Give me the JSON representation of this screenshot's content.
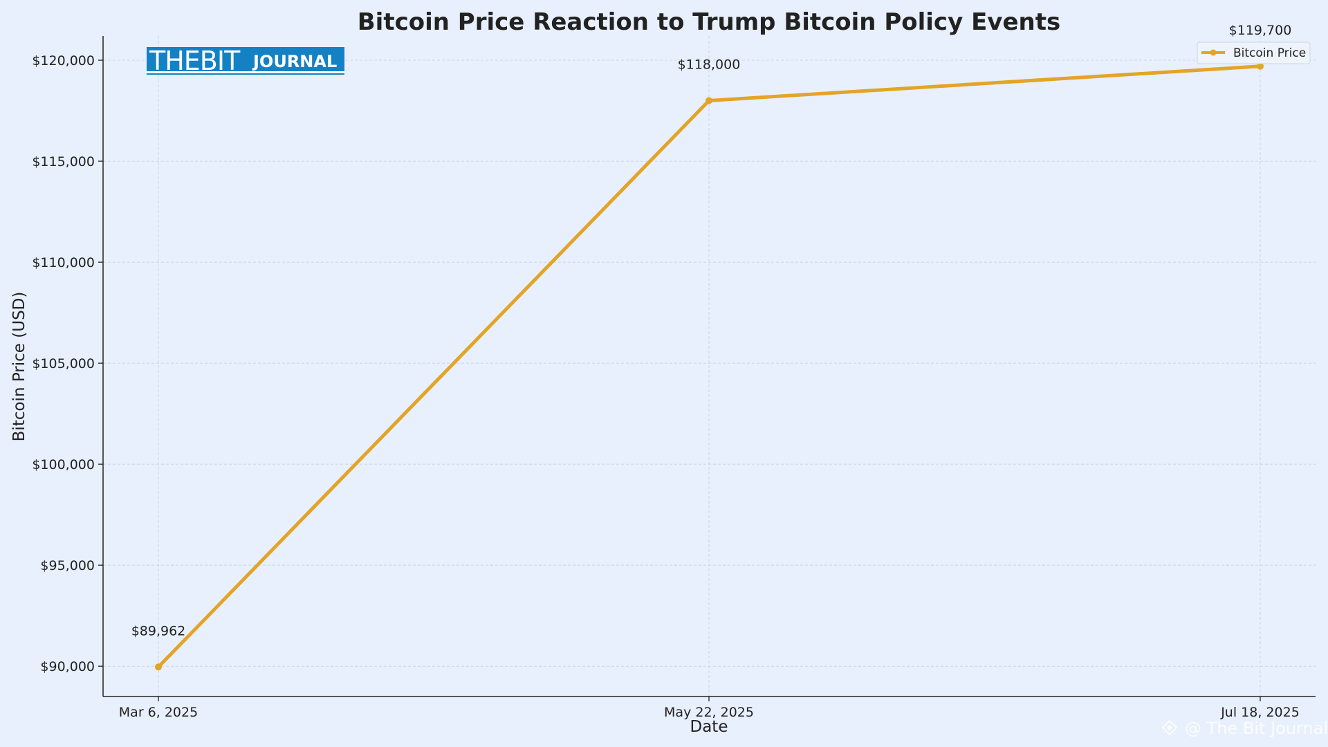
{
  "chart_data": {
    "type": "line",
    "title": "Bitcoin Price Reaction to Trump Bitcoin Policy Events",
    "xlabel": "Date",
    "ylabel": "Bitcoin Price (USD)",
    "categories": [
      "Mar 6, 2025",
      "May 22, 2025",
      "Jul 18, 2025"
    ],
    "series": [
      {
        "name": "Bitcoin Price",
        "values": [
          89962,
          118000,
          119700
        ],
        "data_labels": [
          "$89,962",
          "$118,000",
          "$119,700"
        ],
        "color": "#e3a427"
      }
    ],
    "ylim": [
      88500,
      121200
    ],
    "yticks": [
      90000,
      95000,
      100000,
      105000,
      110000,
      115000,
      120000
    ],
    "ytick_labels": [
      "$90,000",
      "$95,000",
      "$100,000",
      "$105,000",
      "$110,000",
      "$115,000",
      "$120,000"
    ],
    "grid": true,
    "legend_position": "top-right"
  },
  "logo": {
    "text_main": "THEBIT",
    "text_sub": "JOURNAL",
    "background": "#1481c5"
  },
  "watermark": {
    "text": "@ The Bit Journal"
  },
  "colors": {
    "background": "#e8f0fd",
    "line": "#e3a427",
    "grid": "#c9d3e3",
    "axis": "#222222"
  }
}
